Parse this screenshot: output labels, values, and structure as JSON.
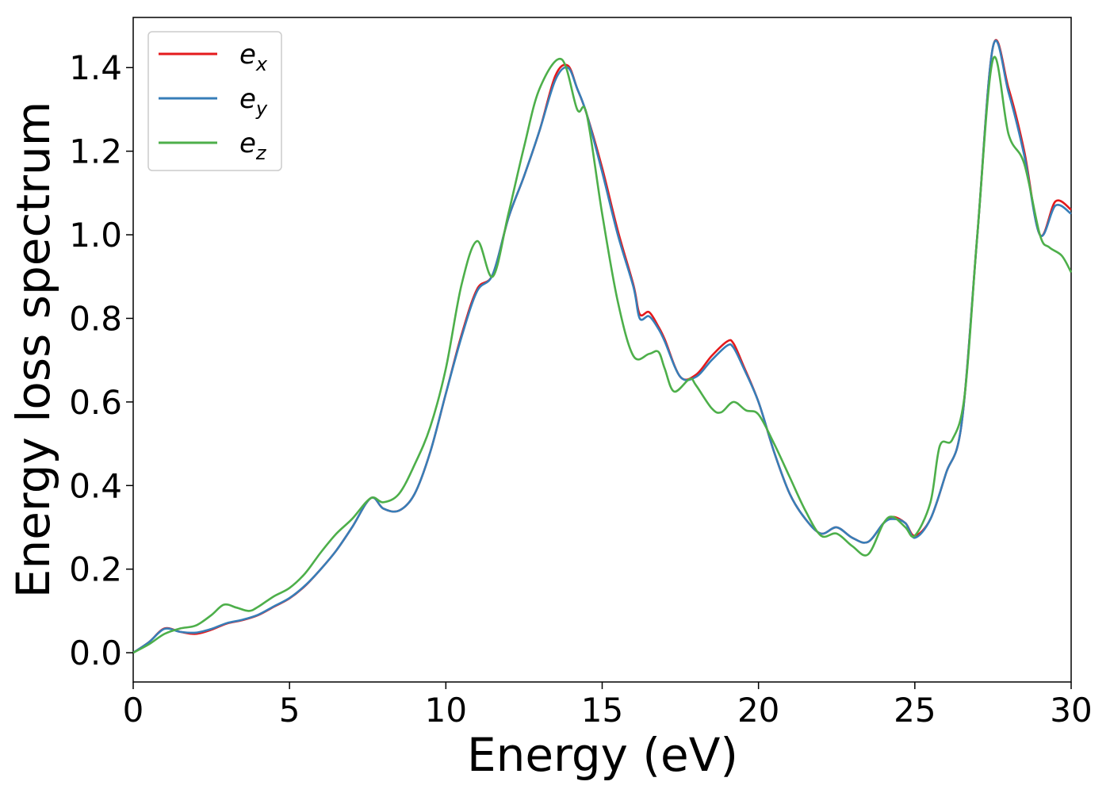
{
  "chart_data": {
    "type": "line",
    "xlabel": "Energy (eV)",
    "ylabel": "Energy loss spectrum",
    "xlim": [
      0,
      30
    ],
    "ylim": [
      -0.07,
      1.52
    ],
    "xticks": [
      "0",
      "5",
      "10",
      "15",
      "20",
      "25",
      "30"
    ],
    "yticks": [
      "0.0",
      "0.2",
      "0.4",
      "0.6",
      "0.8",
      "1.0",
      "1.2",
      "1.4"
    ],
    "grid": false,
    "legend": "top-left",
    "series": [
      {
        "name": "e_x",
        "base": "e",
        "sub": "x",
        "color": "#e41a1c",
        "x": [
          0,
          0.5,
          1.0,
          1.5,
          2.0,
          2.5,
          3.0,
          3.5,
          4.0,
          4.5,
          5.0,
          5.5,
          6.0,
          6.5,
          7.0,
          7.6,
          8.0,
          8.5,
          9.0,
          9.5,
          10.0,
          10.5,
          11.0,
          11.5,
          12.0,
          12.5,
          13.0,
          13.5,
          13.9,
          14.2,
          14.5,
          15.0,
          15.5,
          16.0,
          16.2,
          16.5,
          16.8,
          17.0,
          17.5,
          18.0,
          18.5,
          19.0,
          19.2,
          19.5,
          20.0,
          20.5,
          21.0,
          21.5,
          22.0,
          22.5,
          23.0,
          23.5,
          24.0,
          24.3,
          24.7,
          25.0,
          25.5,
          26.0,
          26.5,
          27.0,
          27.5,
          28.0,
          28.5,
          29.0,
          29.5,
          30.0
        ],
        "y": [
          0,
          0.025,
          0.058,
          0.05,
          0.045,
          0.055,
          0.07,
          0.078,
          0.09,
          0.11,
          0.13,
          0.16,
          0.2,
          0.245,
          0.3,
          0.37,
          0.345,
          0.34,
          0.38,
          0.48,
          0.62,
          0.76,
          0.87,
          0.905,
          1.04,
          1.14,
          1.25,
          1.38,
          1.405,
          1.35,
          1.29,
          1.16,
          1.01,
          0.88,
          0.81,
          0.815,
          0.78,
          0.75,
          0.66,
          0.665,
          0.71,
          0.745,
          0.74,
          0.69,
          0.6,
          0.48,
          0.38,
          0.32,
          0.285,
          0.3,
          0.275,
          0.265,
          0.31,
          0.325,
          0.31,
          0.28,
          0.32,
          0.43,
          0.55,
          1.0,
          1.45,
          1.35,
          1.2,
          1.0,
          1.08,
          1.06
        ]
      },
      {
        "name": "e_y",
        "base": "e",
        "sub": "y",
        "color": "#377eb8",
        "x": [
          0,
          0.5,
          1.0,
          1.5,
          2.0,
          2.5,
          3.0,
          3.5,
          4.0,
          4.5,
          5.0,
          5.5,
          6.0,
          6.5,
          7.0,
          7.6,
          8.0,
          8.5,
          9.0,
          9.5,
          10.0,
          10.5,
          11.0,
          11.5,
          12.0,
          12.5,
          13.0,
          13.5,
          13.9,
          14.2,
          14.5,
          15.0,
          15.5,
          16.0,
          16.2,
          16.5,
          16.8,
          17.0,
          17.5,
          18.0,
          18.5,
          19.0,
          19.2,
          19.5,
          20.0,
          20.5,
          21.0,
          21.5,
          22.0,
          22.5,
          23.0,
          23.5,
          24.0,
          24.3,
          24.7,
          25.0,
          25.5,
          26.0,
          26.5,
          27.0,
          27.5,
          28.0,
          28.5,
          29.0,
          29.5,
          30.0
        ],
        "y": [
          0,
          0.025,
          0.057,
          0.05,
          0.048,
          0.057,
          0.071,
          0.079,
          0.091,
          0.111,
          0.131,
          0.161,
          0.2,
          0.245,
          0.3,
          0.37,
          0.345,
          0.34,
          0.38,
          0.48,
          0.62,
          0.755,
          0.865,
          0.905,
          1.04,
          1.14,
          1.25,
          1.37,
          1.4,
          1.35,
          1.29,
          1.15,
          1.0,
          0.875,
          0.8,
          0.805,
          0.775,
          0.745,
          0.66,
          0.66,
          0.7,
          0.735,
          0.73,
          0.685,
          0.6,
          0.48,
          0.38,
          0.32,
          0.285,
          0.3,
          0.275,
          0.265,
          0.31,
          0.32,
          0.31,
          0.275,
          0.32,
          0.43,
          0.55,
          1.0,
          1.45,
          1.34,
          1.19,
          1.0,
          1.07,
          1.05
        ]
      },
      {
        "name": "e_z",
        "base": "e",
        "sub": "z",
        "color": "#4daf4a",
        "x": [
          0,
          0.5,
          1.0,
          1.5,
          2.0,
          2.5,
          2.9,
          3.3,
          3.7,
          4.0,
          4.5,
          5.0,
          5.5,
          6.0,
          6.5,
          7.0,
          7.6,
          8.0,
          8.5,
          9.0,
          9.5,
          10.0,
          10.5,
          11.0,
          11.5,
          12.0,
          12.5,
          13.0,
          13.7,
          14.2,
          14.5,
          15.0,
          15.5,
          16.0,
          16.5,
          16.8,
          17.0,
          17.3,
          17.8,
          18.0,
          18.5,
          18.8,
          19.2,
          19.6,
          20.0,
          20.5,
          21.0,
          21.5,
          22.0,
          22.5,
          23.0,
          23.5,
          24.0,
          24.3,
          24.7,
          25.0,
          25.5,
          25.8,
          26.2,
          26.6,
          27.0,
          27.5,
          28.0,
          28.5,
          29.0,
          29.3,
          29.7,
          30.0
        ],
        "y": [
          0,
          0.02,
          0.045,
          0.058,
          0.065,
          0.09,
          0.115,
          0.108,
          0.1,
          0.11,
          0.135,
          0.155,
          0.19,
          0.24,
          0.285,
          0.32,
          0.37,
          0.36,
          0.38,
          0.45,
          0.54,
          0.68,
          0.88,
          0.985,
          0.9,
          1.05,
          1.21,
          1.35,
          1.42,
          1.3,
          1.29,
          1.05,
          0.84,
          0.71,
          0.715,
          0.72,
          0.68,
          0.625,
          0.655,
          0.64,
          0.585,
          0.575,
          0.6,
          0.58,
          0.57,
          0.5,
          0.42,
          0.34,
          0.28,
          0.285,
          0.255,
          0.235,
          0.31,
          0.325,
          0.3,
          0.28,
          0.36,
          0.495,
          0.51,
          0.62,
          1.0,
          1.42,
          1.24,
          1.17,
          1.0,
          0.97,
          0.95,
          0.91
        ]
      }
    ]
  }
}
